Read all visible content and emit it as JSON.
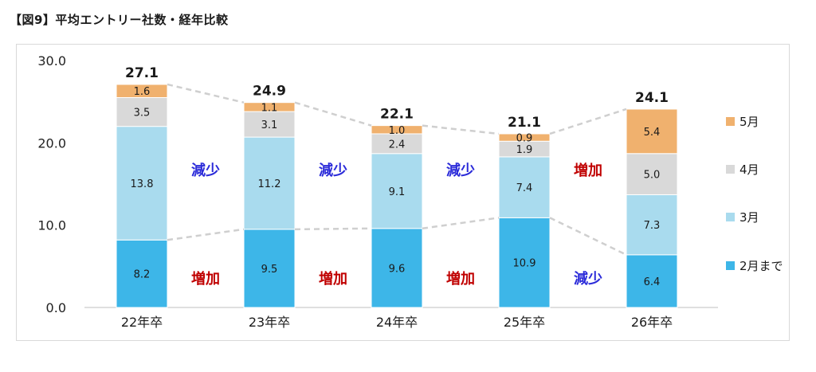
{
  "figure": {
    "title": "【図9】平均エントリー社数・経年比較"
  },
  "chart_data": {
    "type": "bar",
    "stacked": true,
    "title": "【図9】平均エントリー社数・経年比較",
    "categories": [
      "22年卒",
      "23年卒",
      "24年卒",
      "25年卒",
      "26年卒"
    ],
    "series": [
      {
        "name": "2月まで",
        "values": [
          8.2,
          9.5,
          9.6,
          10.9,
          6.4
        ],
        "color": "#3db6e8"
      },
      {
        "name": "3月",
        "values": [
          13.8,
          11.2,
          9.1,
          7.4,
          7.3
        ],
        "color": "#a9dbee"
      },
      {
        "name": "4月",
        "values": [
          3.5,
          3.1,
          2.4,
          1.9,
          5.0
        ],
        "color": "#d9d9d9"
      },
      {
        "name": "5月",
        "values": [
          1.6,
          1.1,
          1.0,
          0.9,
          5.4
        ],
        "color": "#f0b16e"
      }
    ],
    "totals": [
      27.1,
      24.9,
      22.1,
      21.1,
      24.1
    ],
    "value_labels": [
      [
        "8.2",
        "9.5",
        "9.6",
        "10.9",
        "6.4"
      ],
      [
        "13.8",
        "11.2",
        "9.1",
        "7.4",
        "7.3"
      ],
      [
        "3.5",
        "3.1",
        "2.4",
        "1.9",
        "5.0"
      ],
      [
        "1.6",
        "1.1",
        "1.0",
        "0.9",
        "5.4"
      ]
    ],
    "total_labels": [
      "27.1",
      "24.9",
      "22.1",
      "21.1",
      "24.1"
    ],
    "y_ticks": [
      "0.0",
      "10.0",
      "20.0",
      "30.0"
    ],
    "y_tick_values": [
      0,
      10,
      20,
      30
    ],
    "ylim": [
      0,
      30
    ],
    "legend_position": "right",
    "legend_order": [
      3,
      2,
      1,
      0
    ],
    "annotations_upper": [
      {
        "text": "減少",
        "color": "#2b2bd9"
      },
      {
        "text": "減少",
        "color": "#2b2bd9"
      },
      {
        "text": "減少",
        "color": "#2b2bd9"
      },
      {
        "text": "増加",
        "color": "#c00000"
      }
    ],
    "annotations_lower": [
      {
        "text": "増加",
        "color": "#c00000"
      },
      {
        "text": "増加",
        "color": "#c00000"
      },
      {
        "text": "増加",
        "color": "#c00000"
      },
      {
        "text": "減少",
        "color": "#2b2bd9"
      }
    ],
    "grid": false,
    "connector_lines": true
  }
}
